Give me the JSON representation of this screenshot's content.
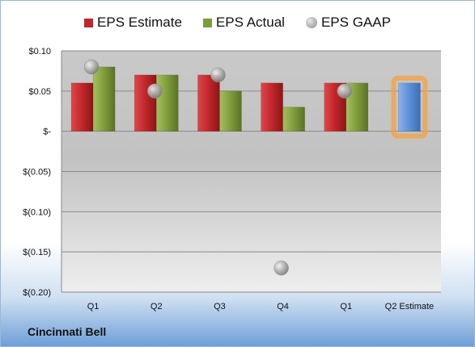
{
  "company": "Cincinnati Bell",
  "legend": [
    {
      "label": "EPS Estimate",
      "color": "#c0262b",
      "shape": "square"
    },
    {
      "label": "EPS Actual",
      "color": "#7f9c3b",
      "shape": "square"
    },
    {
      "label": "EPS GAAP",
      "color": "#9a9a9a",
      "shape": "circle"
    }
  ],
  "chart_data": {
    "type": "bar",
    "categories": [
      "Q1",
      "Q2",
      "Q3",
      "Q4",
      "Q1",
      "Q2 Estimate"
    ],
    "series": [
      {
        "name": "EPS Estimate",
        "values": [
          0.06,
          0.07,
          0.07,
          0.06,
          0.06,
          null
        ],
        "color": "#c0262b"
      },
      {
        "name": "EPS Actual",
        "values": [
          0.08,
          0.07,
          0.05,
          0.03,
          0.06,
          null
        ],
        "color": "#7f9c3b"
      },
      {
        "name": "EPS GAAP",
        "values": [
          0.08,
          0.05,
          0.07,
          -0.17,
          0.05,
          null
        ],
        "color": "#9a9a9a",
        "marker": "circle"
      },
      {
        "name": "Q2 Estimate",
        "values": [
          null,
          null,
          null,
          null,
          null,
          0.06
        ],
        "color": "#5b8fd6",
        "highlight": "#f5a040"
      }
    ],
    "ylim": [
      -0.2,
      0.1
    ],
    "yticks": [
      0.1,
      0.05,
      0,
      -0.05,
      -0.1,
      -0.15,
      -0.2
    ],
    "ytick_labels": [
      "$0.10",
      "$0.05",
      "$-",
      "$(0.05)",
      "$(0.10)",
      "$(0.15)",
      "$(0.20)"
    ],
    "grid": true,
    "legend_position": "top"
  }
}
